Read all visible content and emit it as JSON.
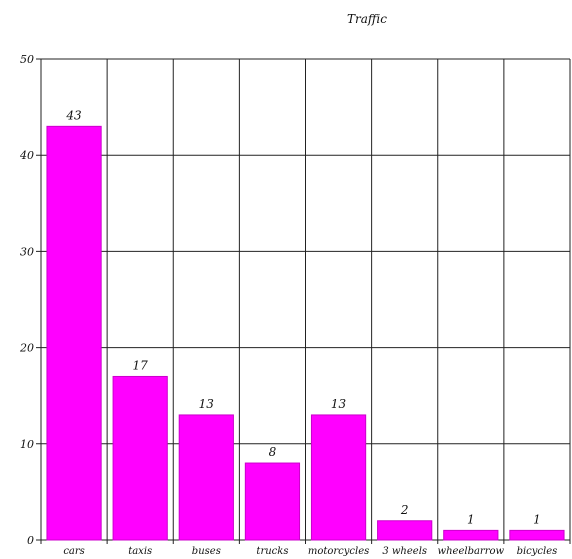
{
  "chart_data": {
    "type": "bar",
    "title": "Traffic",
    "xlabel": "",
    "ylabel": "",
    "categories": [
      "cars",
      "taxis",
      "buses",
      "trucks",
      "motorcycles",
      "3 wheels",
      "wheelbarrow",
      "bicycles"
    ],
    "values": [
      43,
      17,
      13,
      8,
      13,
      2,
      1,
      1
    ],
    "data_labels": [
      "43",
      "17",
      "13",
      "8",
      "13",
      "2",
      "1",
      "1"
    ],
    "y_ticks": [
      "0",
      "10",
      "20",
      "30",
      "40",
      "50"
    ],
    "ylim": [
      0,
      50
    ],
    "grid": true,
    "legend": "none",
    "bar_color": "#ff00ff",
    "bar_stroke": "#cc00cc"
  }
}
